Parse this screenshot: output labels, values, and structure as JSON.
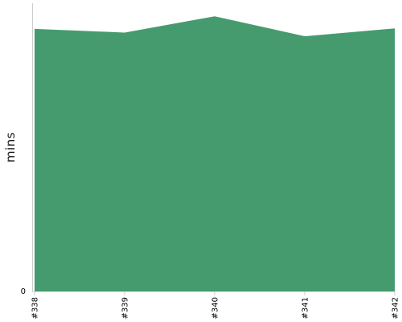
{
  "chart_data": {
    "type": "area",
    "categories": [
      "#338",
      "#339",
      "#340",
      "#341",
      "#342"
    ],
    "series": [
      {
        "values": [
          50.1,
          49.4,
          52.5,
          48.7,
          50.2
        ]
      }
    ],
    "title": "",
    "xlabel": "",
    "ylabel": "mins",
    "ylim": [
      0,
      55
    ],
    "y_tick_labels": [
      {
        "value": 0,
        "label": "0"
      }
    ],
    "grid": false,
    "legend": "none",
    "color": "#459b6e"
  }
}
